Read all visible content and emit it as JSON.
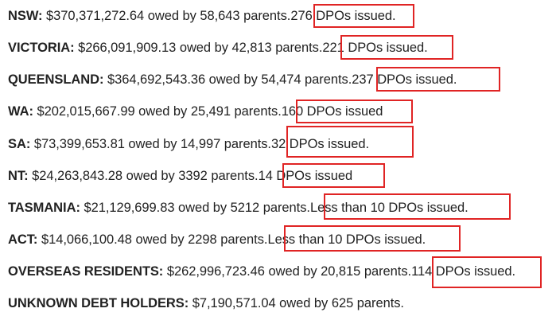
{
  "accent_box_color": "#e02424",
  "rows": [
    {
      "state": "NSW:",
      "amount": "$370,371,272.64",
      "owed_by": "owed by",
      "parents": "58,643",
      "parents_label": "parents.",
      "dpo": "276 DPOs issued."
    },
    {
      "state": "VICTORIA:",
      "amount": "$266,091,909.13",
      "owed_by": "owed by",
      "parents": "42,813",
      "parents_label": "parents.",
      "dpo": "221 DPOs issued."
    },
    {
      "state": "QUEENSLAND:",
      "amount": "$364,692,543.36",
      "owed_by": "owed by",
      "parents": "54,474",
      "parents_label": "parents.",
      "dpo": "237 DPOs issued."
    },
    {
      "state": "WA:",
      "amount": "$202,015,667.99",
      "owed_by": "owed by",
      "parents": "25,491",
      "parents_label": "parents.",
      "dpo": "160 DPOs issued"
    },
    {
      "state": "SA:",
      "amount": "$73,399,653.81",
      "owed_by": "owed by",
      "parents": "14,997",
      "parents_label": "parents.",
      "dpo": "32 DPOs issued."
    },
    {
      "state": "NT:",
      "amount": "$24,263,843.28",
      "owed_by": "owed by",
      "parents": "3392",
      "parents_label": "parents.",
      "dpo": "14 DPOs issued"
    },
    {
      "state": "TASMANIA:",
      "amount": "$21,129,699.83",
      "owed_by": "owed by",
      "parents": "5212",
      "parents_label": "parents.",
      "dpo": "Less than 10 DPOs issued."
    },
    {
      "state": "ACT:",
      "amount": "$14,066,100.48",
      "owed_by": "owed by",
      "parents": "2298",
      "parents_label": "parents.",
      "dpo": "Less than 10 DPOs issued."
    },
    {
      "state": "OVERSEAS RESIDENTS:",
      "amount": "$262,996,723.46",
      "owed_by": "owed by",
      "parents": "20,815",
      "parents_label": "parents.",
      "dpo": "114 DPOs issued."
    },
    {
      "state": "UNKNOWN DEBT HOLDERS:",
      "amount": "$7,190,571.04",
      "owed_by": "owed by",
      "parents": "625",
      "parents_label": "parents.",
      "dpo": ""
    }
  ]
}
